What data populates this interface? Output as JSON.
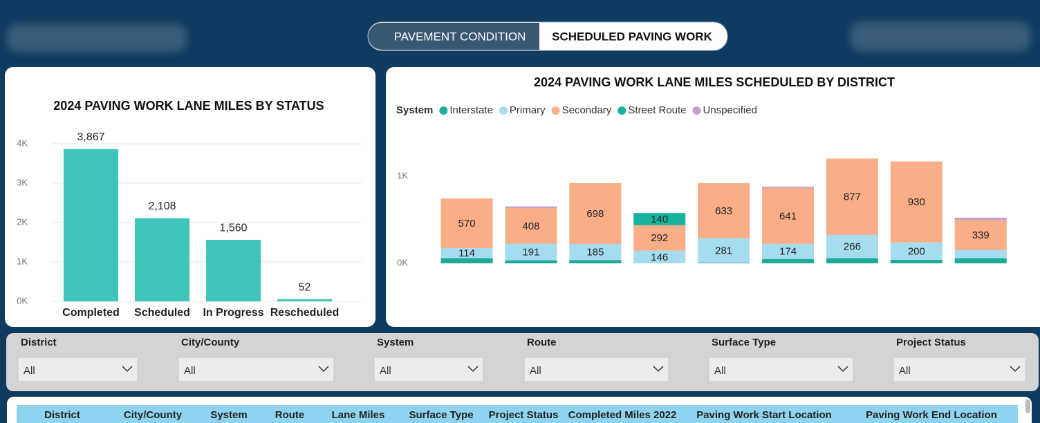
{
  "tabs": [
    "PAVEMENT CONDITION",
    "SCHEDULED PAVING WORK"
  ],
  "chart_data": [
    {
      "type": "bar",
      "title": "2024 PAVING WORK LANE MILES BY STATUS",
      "categories": [
        "Completed",
        "Scheduled",
        "In Progress",
        "Rescheduled"
      ],
      "values": [
        3867,
        2108,
        1560,
        52
      ],
      "value_labels": [
        "3,867",
        "2,108",
        "1,560",
        "52"
      ],
      "color": "#3ec4b8",
      "ylim": [
        0,
        4000
      ],
      "yticks": [
        {
          "value": 0,
          "label": "0K"
        },
        {
          "value": 1000,
          "label": "1K"
        },
        {
          "value": 2000,
          "label": "2K"
        },
        {
          "value": 3000,
          "label": "3K"
        },
        {
          "value": 4000,
          "label": "4K"
        }
      ],
      "grid": true
    },
    {
      "type": "stacked_bar",
      "title": "2024 PAVING WORK LANE MILES SCHEDULED BY DISTRICT",
      "legend_title": "System",
      "categories": [
        null,
        null,
        null,
        null,
        null,
        null,
        null,
        null,
        null
      ],
      "series": [
        {
          "name": "Interstate",
          "color": "#1fa99a",
          "values": [
            60,
            35,
            38,
            0,
            7,
            50,
            60,
            40,
            60
          ]
        },
        {
          "name": "Primary",
          "color": "#a6dcf0",
          "values": [
            114,
            191,
            185,
            146,
            281,
            174,
            266,
            200,
            95
          ]
        },
        {
          "name": "Secondary",
          "color": "#f9ae88",
          "values": [
            570,
            408,
            698,
            292,
            633,
            641,
            877,
            930,
            339
          ]
        },
        {
          "name": "Street Route",
          "color": "#17b39d",
          "values": [
            0,
            0,
            0,
            140,
            0,
            0,
            0,
            0,
            0
          ]
        },
        {
          "name": "Unspecified",
          "color": "#c9a0c9",
          "values": [
            0,
            20,
            0,
            0,
            0,
            15,
            0,
            0,
            30
          ]
        }
      ],
      "ylim": [
        0,
        1500
      ],
      "yticks": [
        {
          "value": 0,
          "label": "0K"
        },
        {
          "value": 1000,
          "label": "1K"
        }
      ],
      "grid": false
    }
  ],
  "filters": [
    {
      "label": "District",
      "value": "All"
    },
    {
      "label": "City/County",
      "value": "All"
    },
    {
      "label": "System",
      "value": "All"
    },
    {
      "label": "Route",
      "value": "All"
    },
    {
      "label": "Surface Type",
      "value": "All"
    },
    {
      "label": "Project Status",
      "value": "All"
    }
  ],
  "table": {
    "columns": [
      "District",
      "City/County",
      "System",
      "Route",
      "Lane Miles",
      "Surface Type",
      "Project Status",
      "Completed Miles 2022",
      "Paving Work Start Location",
      "Paving Work End Location"
    ]
  }
}
